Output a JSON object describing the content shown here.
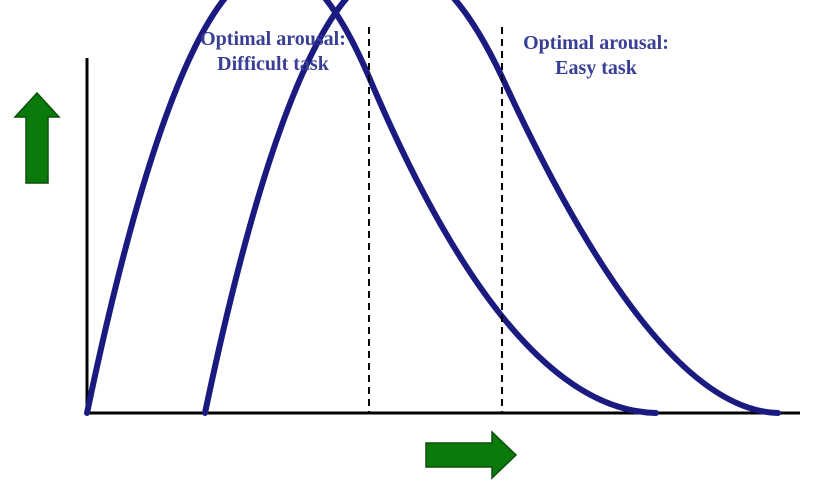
{
  "annotations": {
    "difficult_line1": "Optimal arousal:",
    "difficult_line2": "Difficult task",
    "easy_line1": "Optimal arousal:",
    "easy_line2": "Easy task"
  },
  "colors": {
    "curve": "#1a1a80",
    "axis": "#000000",
    "guide": "#000000",
    "arrow_fill": "#0a7a0a",
    "arrow_stroke": "#0b4f0b",
    "text": "#3a3f96"
  },
  "icons": {
    "vertical_arrow": "arrow-up-icon",
    "horizontal_arrow": "arrow-right-icon"
  }
}
